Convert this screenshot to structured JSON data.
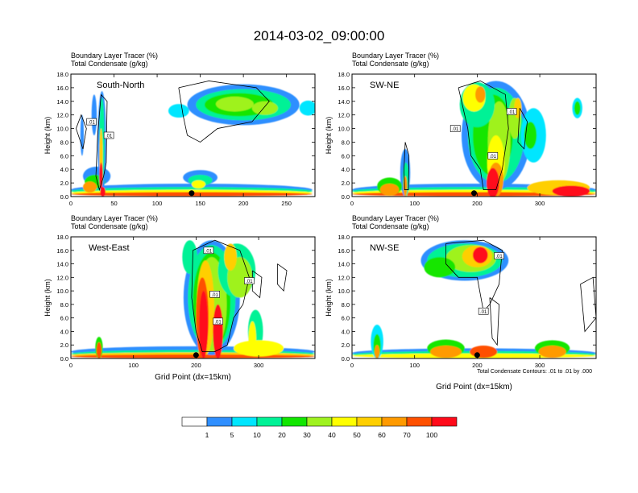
{
  "figure": {
    "title": "2014-03-02_09:00:00",
    "footnote": "Total Condensate Contours: .01 to .01 by .000"
  },
  "chart_data": [
    {
      "type": "heatmap",
      "id": "p1",
      "panel_label": "South-North",
      "title_line1": "Boundary Layer Tracer",
      "title_line1_units": "(%)",
      "title_line2": "Total Condensate",
      "title_line2_units": "(g/kg)",
      "ylabel": "Height (km)",
      "xlabel": "",
      "xlim": [
        0,
        283
      ],
      "ylim": [
        0,
        18
      ],
      "xticks": [
        0,
        50,
        100,
        150,
        200,
        250
      ],
      "yticks": [
        0.0,
        2.0,
        4.0,
        6.0,
        8.0,
        10.0,
        12.0,
        14.0,
        16.0,
        18.0
      ],
      "ytick_labels": [
        "0.0",
        "2.0",
        "4.0",
        "6.0",
        "8.0",
        "10.0",
        "12.0",
        "14.0",
        "16.0",
        "18.0"
      ],
      "marker_x": 140,
      "contour_labels": [
        ".01",
        ".01"
      ]
    },
    {
      "type": "heatmap",
      "id": "p2",
      "panel_label": "SW-NE",
      "title_line1": "Boundary Layer Tracer",
      "title_line1_units": "(%)",
      "title_line2": "Total Condensate",
      "title_line2_units": "(g/kg)",
      "ylabel": "Height (km)",
      "xlabel": "",
      "xlim": [
        0,
        390
      ],
      "ylim": [
        0,
        18
      ],
      "xticks": [
        0,
        100,
        200,
        300
      ],
      "yticks": [
        0.0,
        2.0,
        4.0,
        6.0,
        8.0,
        10.0,
        12.0,
        14.0,
        16.0,
        18.0
      ],
      "ytick_labels": [
        "0.0",
        "2.0",
        "4.0",
        "6.0",
        "8.0",
        "10.0",
        "12.0",
        "14.0",
        "16.0",
        "18.0"
      ],
      "marker_x": 195,
      "contour_labels": [
        ".01",
        ".01",
        ".01"
      ]
    },
    {
      "type": "heatmap",
      "id": "p3",
      "panel_label": "West-East",
      "title_line1": "Boundary Layer Tracer",
      "title_line1_units": "(%)",
      "title_line2": "Total Condensate",
      "title_line2_units": "(g/kg)",
      "ylabel": "Height (km)",
      "xlabel": "Grid Point (dx=15km)",
      "xlim": [
        0,
        390
      ],
      "ylim": [
        0,
        18
      ],
      "xticks": [
        0,
        100,
        200,
        300
      ],
      "yticks": [
        0.0,
        2.0,
        4.0,
        6.0,
        8.0,
        10.0,
        12.0,
        14.0,
        16.0,
        18.0
      ],
      "ytick_labels": [
        "0.0",
        "2.0",
        "4.0",
        "6.0",
        "8.0",
        "10.0",
        "12.0",
        "14.0",
        "16.0",
        "18.0"
      ],
      "marker_x": 200,
      "contour_labels": [
        ".01",
        ".01",
        ".01",
        ".01"
      ]
    },
    {
      "type": "heatmap",
      "id": "p4",
      "panel_label": "NW-SE",
      "title_line1": "Boundary Layer Tracer",
      "title_line1_units": "(%)",
      "title_line2": "Total Condensate",
      "title_line2_units": "(g/kg)",
      "ylabel": "Height (km)",
      "xlabel": "Grid Point (dx=15km)",
      "xlim": [
        0,
        390
      ],
      "ylim": [
        0,
        18
      ],
      "xticks": [
        0,
        100,
        200,
        300
      ],
      "yticks": [
        0.0,
        2.0,
        4.0,
        6.0,
        8.0,
        10.0,
        12.0,
        14.0,
        16.0,
        18.0
      ],
      "ytick_labels": [
        "0.0",
        "2.0",
        "4.0",
        "6.0",
        "8.0",
        "10.0",
        "12.0",
        "14.0",
        "16.0",
        "18.0"
      ],
      "marker_x": 200,
      "contour_labels": [
        ".01",
        ".01"
      ]
    }
  ],
  "colorbar": {
    "labels": [
      "1",
      "5",
      "10",
      "20",
      "30",
      "40",
      "50",
      "60",
      "70",
      "100"
    ],
    "colors": [
      "#ffffff",
      "#2f8fff",
      "#00e6ff",
      "#00f296",
      "#12e600",
      "#9ff21f",
      "#ffff00",
      "#ffcf00",
      "#ff9a00",
      "#ff5000",
      "#ff0a1a"
    ]
  }
}
